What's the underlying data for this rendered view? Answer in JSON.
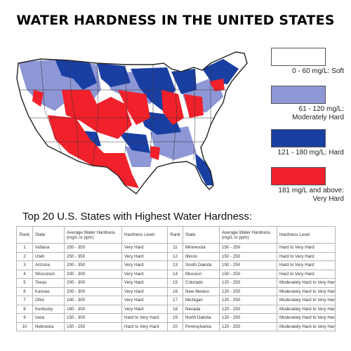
{
  "title": "WATER HARDNESS IN THE UNITED STATES",
  "legend": [
    {
      "color": "#ffffff",
      "label_lines": [
        "0 - 60 mg/L: Soft"
      ]
    },
    {
      "color": "#8e97d6",
      "label_lines": [
        "61 - 120 mg/L:",
        "Moderately Hard"
      ]
    },
    {
      "color": "#1a3fa3",
      "label_lines": [
        "121 - 180 mg/L: Hard"
      ]
    },
    {
      "color": "#f0212b",
      "label_lines": [
        "181 mg/L and above:",
        "Very Hard"
      ]
    }
  ],
  "subtitle": "Top 20 U.S. States with Highest Water Hardness:",
  "table": {
    "headers": [
      "Rank",
      "State",
      "Average Water Hardness (mg/L or ppm)",
      "Hardness Level",
      "Rank",
      "State",
      "Average Water Hardness (mg/L or ppm)",
      "Hardness Level"
    ],
    "rows": [
      [
        "1",
        "Indiana",
        "250 - 350",
        "Very Hard",
        "11",
        "Minnesota",
        "150 - 250",
        "Hard to Very Hard"
      ],
      [
        "2",
        "Utah",
        "250 - 350",
        "Very Hard",
        "12",
        "Illinois",
        "150 - 250",
        "Hard to Very Hard"
      ],
      [
        "3",
        "Arizona",
        "200 - 350",
        "Very Hard",
        "13",
        "South Dakota",
        "150 - 250",
        "Hard to Very Hard"
      ],
      [
        "4",
        "Wisconsin",
        "200 - 300",
        "Very Hard",
        "14",
        "Missouri",
        "150 - 250",
        "Hard to Very Hard"
      ],
      [
        "5",
        "Texas",
        "200 - 300",
        "Very Hard",
        "15",
        "Colorado",
        "120 - 250",
        "Moderately Hard to Very Hard"
      ],
      [
        "6",
        "Kansas",
        "200 - 300",
        "Very Hard",
        "16",
        "New Mexico",
        "120 - 250",
        "Moderately Hard to Very Hard"
      ],
      [
        "7",
        "Ohio",
        "180 - 300",
        "Very Hard",
        "17",
        "Michigan",
        "120 - 250",
        "Moderately Hard to Very Hard"
      ],
      [
        "8",
        "Kentucky",
        "180 - 300",
        "Very Hard",
        "18",
        "Nevada",
        "120 - 250",
        "Moderately Hard to Very Hard"
      ],
      [
        "9",
        "Iowa",
        "150 - 300",
        "Hard to Very Hard",
        "19",
        "North Dakota",
        "120 - 250",
        "Moderately Hard to Very Hard"
      ],
      [
        "10",
        "Nebraska",
        "150 - 250",
        "Hard to Very Hard",
        "20",
        "Pennsylvania",
        "120 - 250",
        "Moderately Hard to Very Hard"
      ]
    ]
  }
}
